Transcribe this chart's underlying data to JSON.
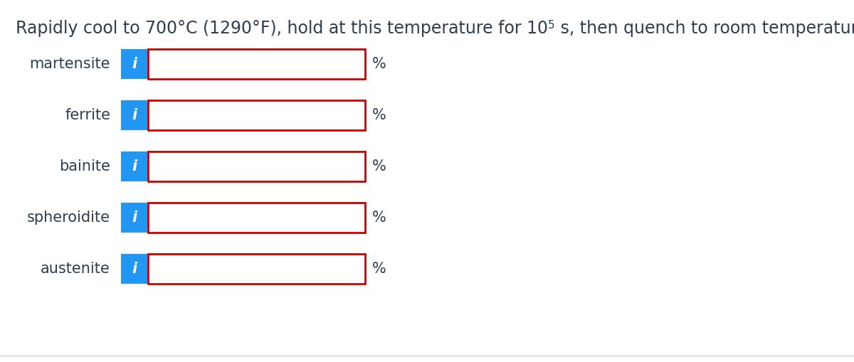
{
  "background_color": "#ffffff",
  "text_color": "#2d3f50",
  "labels": [
    "martensite",
    "ferrite",
    "bainite",
    "spheroidite",
    "austenite"
  ],
  "button_color": "#2196f3",
  "button_text": "i",
  "button_text_color": "#ffffff",
  "input_box_border_color": "#cc0000",
  "input_box_fill": "#ffffff",
  "percent_sign": "%",
  "title_fontsize": 17,
  "label_fontsize": 15,
  "superscript_fontsize": 11,
  "bottom_line_color": "#cccccc"
}
